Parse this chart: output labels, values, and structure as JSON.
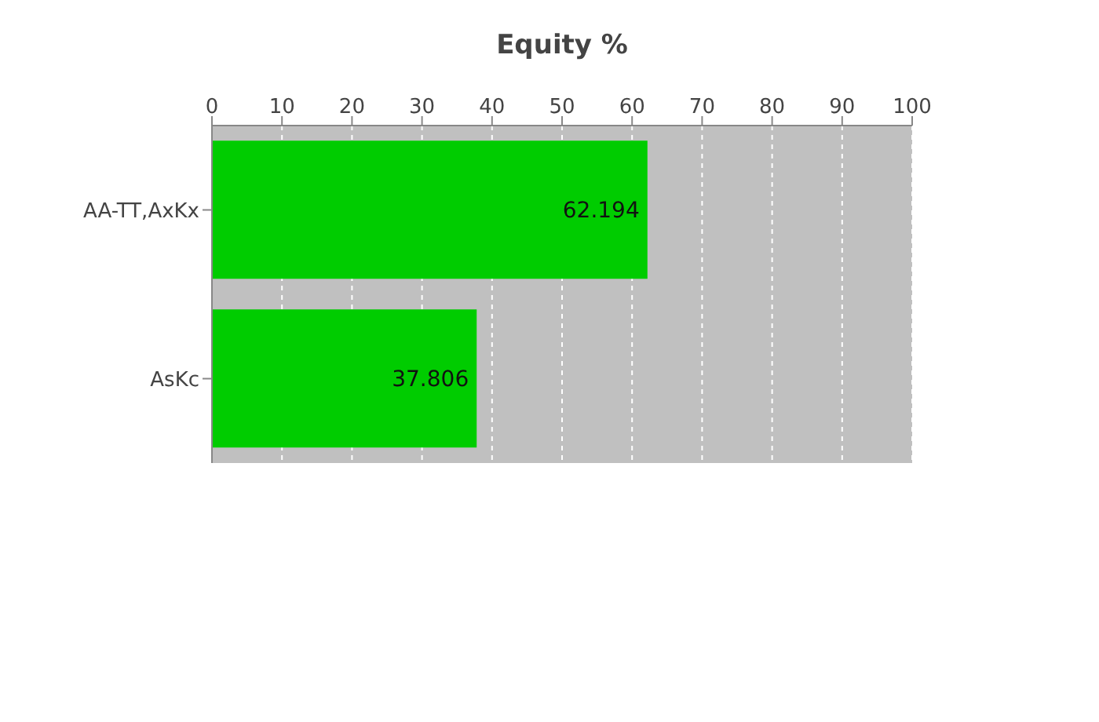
{
  "chart_data": {
    "type": "bar",
    "orientation": "horizontal",
    "xlabel": "Equity %",
    "categories": [
      "AA-TT,AxKx",
      "AsKc"
    ],
    "values": [
      62.194,
      37.806
    ],
    "color": "#00cc00",
    "xlim": [
      0,
      100
    ],
    "xticks": [
      0,
      10,
      20,
      30,
      40,
      50,
      60,
      70,
      80,
      90,
      100
    ],
    "grid": "x",
    "data_labels": true
  }
}
